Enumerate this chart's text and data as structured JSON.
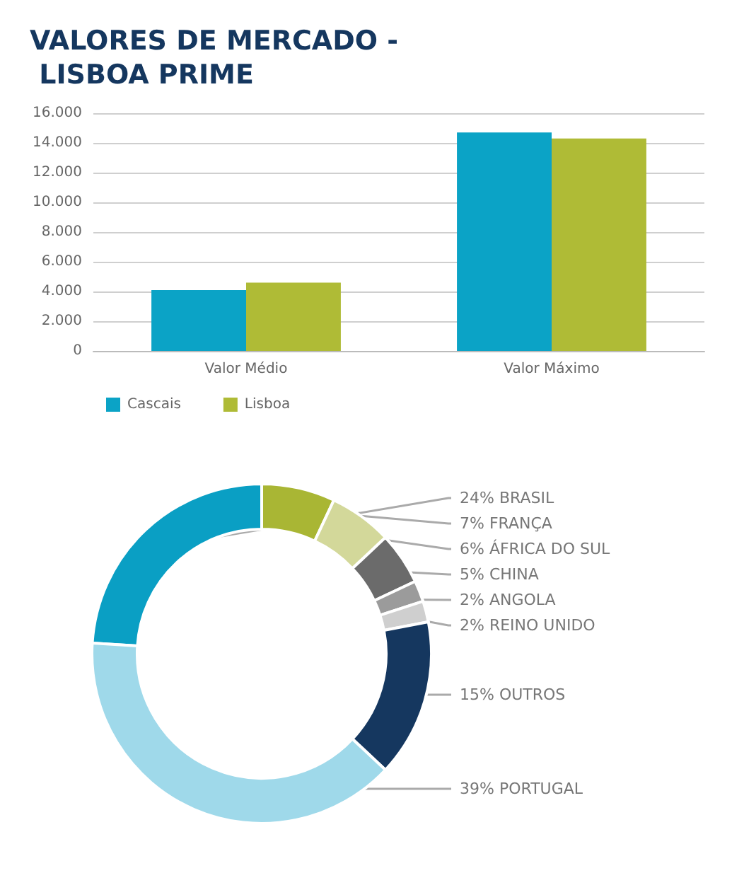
{
  "chart_data": [
    {
      "type": "bar",
      "title": "VALORES DE MERCADO - LISBOA PRIME",
      "categories": [
        "Valor Médio",
        "Valor Máximo"
      ],
      "series": [
        {
          "name": "Cascais",
          "color": "#0ba3c6",
          "values": [
            4100,
            14700
          ]
        },
        {
          "name": "Lisboa",
          "color": "#afbb36",
          "values": [
            4600,
            14300
          ]
        }
      ],
      "ylim": [
        0,
        16000
      ],
      "yticks": [
        {
          "value": 0,
          "label": "0"
        },
        {
          "value": 2000,
          "label": "2.000"
        },
        {
          "value": 4000,
          "label": "4.000"
        },
        {
          "value": 6000,
          "label": "6.000"
        },
        {
          "value": 8000,
          "label": "8.000"
        },
        {
          "value": 10000,
          "label": "10.000"
        },
        {
          "value": 12000,
          "label": "12.000"
        },
        {
          "value": 14000,
          "label": "14.000"
        },
        {
          "value": 16000,
          "label": "16.000"
        }
      ],
      "grid": "y",
      "legend": "bottom left"
    },
    {
      "type": "donut",
      "categories": [
        "BRASIL",
        "FRANÇA",
        "ÁFRICA DO SUL",
        "CHINA",
        "ANGOLA",
        "REINO UNIDO",
        "OUTROS",
        "PORTUGAL"
      ],
      "values": [
        24,
        7,
        6,
        5,
        2,
        2,
        15,
        39
      ],
      "colors": [
        "#0a9fc4",
        "#a9b634",
        "#d3d89a",
        "#6b6b6b",
        "#9b9b9b",
        "#cfcfcf",
        "#15375f",
        "#9fd9ea"
      ],
      "value_labels": [
        "24%",
        "7%",
        "6%",
        "5%",
        "2%",
        "2%",
        "15%",
        "39%"
      ]
    }
  ]
}
